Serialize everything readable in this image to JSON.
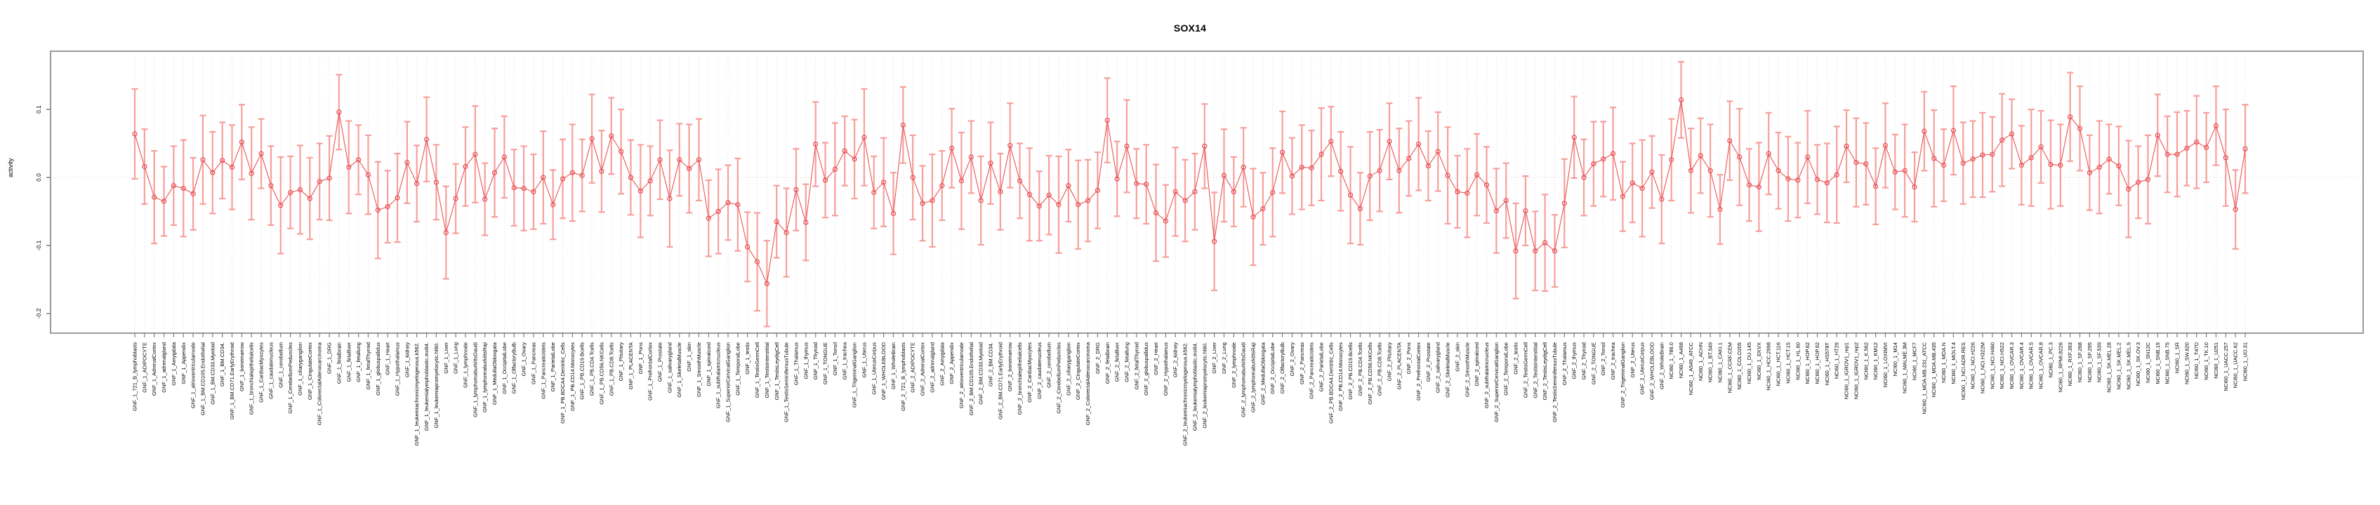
{
  "chart_data": {
    "type": "line",
    "subtype": "points-with-error-bars",
    "title": "SOX14",
    "xlabel": "",
    "ylabel": "activity",
    "ylim": [
      -0.23,
      0.185
    ],
    "yticks": [
      {
        "label": "0.1",
        "value": 0.1
      },
      {
        "label": "0.0",
        "value": 0.0
      },
      {
        "label": "-0.1",
        "value": -0.1
      },
      {
        "label": "-0.2",
        "value": -0.2
      }
    ],
    "grid": "dotted vertical gridline at every category; dotted horizontal line at 0",
    "legend_position": "none",
    "colors": {
      "error_bar": "#f79f9b",
      "marker": "#e8555a",
      "line": "#e8555a",
      "gridline": "#dcdcdc",
      "zero_line": "#c9c9c9",
      "box": "#9b9b9b",
      "tick": "#7f7f7f",
      "text": "#000000"
    },
    "categories": [
      "GNF_1_721_B_lymphoblasts",
      "GNF_1_ADIPOCYTE",
      "GNF_1_AdrenalCortex",
      "GNF_1_adrenalgland",
      "GNF_1_Amygdala",
      "GNF_1_Appendix",
      "GNF_1_atrioventricularnode",
      "GNF_1_BM.CD105.Endothelial",
      "GNF_1_BM.CD33.Myeloid",
      "GNF_1_BM.CD34.",
      "GNF_1_BM.CD71.EarlyErythroid",
      "GNF_1_bonemarrow",
      "GNF_1_bronchialepithelialcells",
      "GNF_1_CardiacMyocytes",
      "GNF_1_caudatenucleus",
      "GNF_1_cerebellum",
      "GNF_1_CerebellumPeduncles",
      "GNF_1_ciliaryganglion",
      "GNF_1_CingulateCortex",
      "GNF_1_ColorectalAdenocarcinoma",
      "GNF_1_DRG",
      "GNF_1_fetalbrain",
      "GNF_1_fetalliver",
      "GNF_1_fetallung",
      "GNF_1_fetalThyroid",
      "GNF_1_globuspallidus",
      "GNF_1_Heart",
      "GNF_1_Hypothalamus",
      "GNF_1_kidney",
      "GNF_1_leukemiachronicmyelogenous.k562.",
      "GNF_1_leukemialymphoblastic.molt4.",
      "GNF_1_leukemiapromyelocytic.hl60.",
      "GNF_1_Liver",
      "GNF_1_Lung",
      "GNF_1_lymphnode",
      "GNF_1_lymphomaburkittsDaudi",
      "GNF_1_lymphomaburkittsRaji",
      "GNF_1_MedullaOblongata",
      "GNF_1_OccipitalLobe",
      "GNF_1_OlfactoryBulb",
      "GNF_1_Ovary",
      "GNF_1_Pancreas",
      "GNF_1_Pancreaticislets",
      "GNF_1_ParietalLobe",
      "GNF_1_PB.BDCA4.Dentritic_Cells",
      "GNF_1_PB.CD14.Monocytes",
      "GNF_1_PB.CD19.Bcells",
      "GNF_1_PB.CD4.Tcells",
      "GNF_1_PB.CD56.NKCells",
      "GNF_1_PB.CD8.Tcells",
      "GNF_1_Pituitary",
      "GNF_1_PLACENTA",
      "GNF_1_Pons",
      "GNF_1_PrefrontalCortex",
      "GNF_1_Prostate",
      "GNF_1_salivarygland",
      "GNF_1_SkeletalMuscle",
      "GNF_1_skin",
      "GNF_1_SmoothMuscle",
      "GNF_1_spinalcord",
      "GNF_1_subthalamicnucleus",
      "GNF_1_SuperiorCervicalGanglion",
      "GNF_1_TemporalLobe",
      "GNF_1_testis",
      "GNF_1_TestisGermCell",
      "GNF_1_TestisInterstitial",
      "GNF_1_TestisLeydigCell",
      "GNF_1_TestisSeminiferousTubule",
      "GNF_1_Thalamus",
      "GNF_1_thymus",
      "GNF_1_Thyroid",
      "GNF_1_TONGUE",
      "GNF_1_Tonsil",
      "GNF_1_trachea",
      "GNF_1_TrigeminalGanglion",
      "GNF_1_Uterus",
      "GNF_1_UterusCorpus",
      "GNF_1_WHOLEBLOOD",
      "GNF_1_WholeBrain",
      "GNF_2_721_B_lymphoblasts",
      "GNF_2_ADIPOCYTE",
      "GNF_2_AdrenalCortex",
      "GNF_2_adrenalgland",
      "GNF_2_Amygdala",
      "GNF_2_Appendix",
      "GNF_2_atrioventricularnode",
      "GNF_2_BM.CD105.Endothelial",
      "GNF_2_BM.CD33.Myeloid",
      "GNF_2_BM.CD34.",
      "GNF_2_BM.CD71.EarlyErythroid",
      "GNF_2_bonemarrow",
      "GNF_2_bronchialepithelialcells",
      "GNF_2_CardiacMyocytes",
      "GNF_2_caudatenucleus",
      "GNF_2_cerebellum",
      "GNF_2_CerebellumPeduncles",
      "GNF_2_ciliaryganglion",
      "GNF_2_CingulateCortex",
      "GNF_2_ColorectalAdenocarcinoma",
      "GNF_2_DRG",
      "GNF_2_fetalbrain",
      "GNF_2_fetalliver",
      "GNF_2_fetallung",
      "GNF_2_fetalThyroid",
      "GNF_2_globuspallidus",
      "GNF_2_Heart",
      "GNF_2_Hypothalamus",
      "GNF_2_kidney",
      "GNF_2_leukemiachronicmyelogenous.k562.",
      "GNF_2_leukemialymphoblastic.molt4.",
      "GNF_2_leukemiapromyelocytic.hl60.",
      "GNF_2_Liver",
      "GNF_2_Lung",
      "GNF_2_lymphnode",
      "GNF_2_lymphomaburkittsDaudi",
      "GNF_2_lymphomaburkittsRaji",
      "GNF_2_MedullaOblongata",
      "GNF_2_OccipitalLobe",
      "GNF_2_OlfactoryBulb",
      "GNF_2_Ovary",
      "GNF_2_Pancreas",
      "GNF_2_Pancreaticislets",
      "GNF_2_ParietalLobe",
      "GNF_2_PB.BDCA4.Dentritic_Cells",
      "GNF_2_PB.CD14.Monocytes",
      "GNF_2_PB.CD19.Bcells",
      "GNF_2_PB.CD4.Tcells",
      "GNF_2_PB.CD56.NKCells",
      "GNF_2_PB.CD8.Tcells",
      "GNF_2_Pituitary",
      "GNF_2_PLACENTA",
      "GNF_2_Pons",
      "GNF_2_PrefrontalCortex",
      "GNF_2_Prostate",
      "GNF_2_salivarygland",
      "GNF_2_SkeletalMuscle",
      "GNF_2_skin",
      "GNF_2_SmoothMuscle",
      "GNF_2_spinalcord",
      "GNF_2_subthalamicnucleus",
      "GNF_2_SuperiorCervicalGanglion",
      "GNF_2_TemporalLobe",
      "GNF_2_testis",
      "GNF_2_TestisGermCell",
      "GNF_2_TestisInterstitial",
      "GNF_2_TestisLeydigCell",
      "GNF_2_TestisSeminiferousTubule",
      "GNF_2_Thalamus",
      "GNF_2_thymus",
      "GNF_2_Thyroid",
      "GNF_2_TONGUE",
      "GNF_2_Tonsil",
      "GNF_2_trachea",
      "GNF_2_TrigeminalGanglion",
      "GNF_2_Uterus",
      "GNF_2_UterusCorpus",
      "GNF_2_WHOLEBLOOD",
      "GNF_2_WholeBrain",
      "NCI60_1_786.0",
      "NCI60_1_A498",
      "NCI60_1_A549_ATCC",
      "NCI60_1_ACHN",
      "NCI60_1_BT.549",
      "NCI60_1_CAKI.1",
      "NCI60_1_CCRF.CEM",
      "NCI60_1_COLO205",
      "NCI60_1_DU.145",
      "NCI60_1_EKVX",
      "NCI60_1_HCC.2998",
      "NCI60_1_HCT.116",
      "NCI60_1_HCT.15",
      "NCI60_1_HL.60",
      "NCI60_1_HOP.62",
      "NCI60_1_HOP.92",
      "NCI60_1_HS578T",
      "NCI60_1_HT29",
      "NCI60_1_IGROV1_rep1",
      "NCI60_1_IGROV1_rep2",
      "NCI60_1_K.562",
      "NCI60_1_KM12",
      "NCI60_1_LOXIMVI",
      "NCI60_1_M14",
      "NCI60_1_MALME.3M",
      "NCI60_1_MCF7",
      "NCI60_1_MDA.MB.231_ATCC",
      "NCI60_1_MDA.MB.435",
      "NCI60_1_MDA.N",
      "NCI60_1_MOLT.4",
      "NCI60_1_NCI.ADR.RES",
      "NCI60_1_NCI.H226",
      "NCI60_1_NCI.H322M",
      "NCI60_1_NCI.H460",
      "NCI60_1_NCI.H522",
      "NCI60_1_OVCAR.3",
      "NCI60_1_OVCAR.4",
      "NCI60_1_OVCAR.5",
      "NCI60_1_OVCAR.8",
      "NCI60_1_PC.3",
      "NCI60_1_RPMI.8226",
      "NCI60_1_RXF.393",
      "NCI60_1_SF.268",
      "NCI60_1_SF.295",
      "NCI60_1_SF.539",
      "NCI60_1_SK.MEL.28",
      "NCI60_1_SK.MEL.2",
      "NCI60_1_SK.MEL.5",
      "NCI60_1_SK.OV.3",
      "NCI60_1_SN12C",
      "NCI60_1_SNB.19",
      "NCI60_1_SNB.75",
      "NCI60_1_SR",
      "NCI60_1_SW.620",
      "NCI60_1_T47D",
      "NCI60_1_TK.10",
      "NCI60_1_U251",
      "NCI60_1_UACC.257",
      "NCI60_1_UACC.62",
      "NCI60_1_UO.31"
    ],
    "values": [
      0.064,
      0.016,
      -0.029,
      -0.035,
      -0.012,
      -0.016,
      -0.024,
      0.026,
      0.007,
      0.025,
      0.015,
      0.052,
      0.006,
      0.035,
      -0.012,
      -0.041,
      -0.022,
      -0.018,
      -0.031,
      -0.006,
      -0.001,
      0.096,
      0.015,
      0.026,
      0.004,
      -0.048,
      -0.043,
      -0.03,
      0.022,
      -0.009,
      0.056,
      -0.007,
      -0.081,
      -0.031,
      0.016,
      0.034,
      -0.032,
      0.007,
      0.03,
      -0.015,
      -0.016,
      -0.021,
      0.0,
      -0.04,
      -0.002,
      0.007,
      0.003,
      0.057,
      0.009,
      0.061,
      0.038,
      0.0,
      -0.02,
      -0.005,
      0.026,
      -0.031,
      0.026,
      0.013,
      0.026,
      -0.06,
      -0.05,
      -0.037,
      -0.04,
      -0.102,
      -0.124,
      -0.156,
      -0.065,
      -0.081,
      -0.018,
      -0.066,
      0.049,
      -0.004,
      0.012,
      0.039,
      0.027,
      0.059,
      -0.022,
      -0.007,
      -0.053,
      0.077,
      0.0,
      -0.038,
      -0.034,
      -0.012,
      0.043,
      -0.005,
      0.03,
      -0.034,
      0.021,
      -0.021,
      0.047,
      -0.005,
      -0.025,
      -0.042,
      -0.026,
      -0.04,
      -0.012,
      -0.04,
      -0.034,
      -0.019,
      0.084,
      -0.002,
      0.046,
      -0.009,
      -0.01,
      -0.052,
      -0.064,
      -0.021,
      -0.034,
      -0.021,
      0.046,
      -0.094,
      0.003,
      -0.021,
      0.015,
      -0.058,
      -0.046,
      -0.022,
      0.037,
      0.002,
      0.015,
      0.014,
      0.034,
      0.053,
      0.009,
      -0.026,
      -0.046,
      0.002,
      0.01,
      0.053,
      0.01,
      0.028,
      0.049,
      0.017,
      0.038,
      0.003,
      -0.021,
      -0.023,
      0.004,
      -0.011,
      -0.049,
      -0.034,
      -0.108,
      -0.049,
      -0.108,
      -0.096,
      -0.108,
      -0.038,
      0.059,
      0.0,
      0.02,
      0.027,
      0.035,
      -0.028,
      -0.008,
      -0.016,
      0.008,
      -0.032,
      0.026,
      0.114,
      0.01,
      0.032,
      0.01,
      -0.047,
      0.054,
      0.03,
      -0.011,
      -0.014,
      0.035,
      0.01,
      -0.002,
      -0.004,
      0.03,
      -0.003,
      -0.008,
      0.004,
      0.046,
      0.022,
      0.02,
      -0.013,
      0.047,
      0.008,
      0.01,
      -0.014,
      0.068,
      0.028,
      0.018,
      0.069,
      0.021,
      0.027,
      0.033,
      0.034,
      0.055,
      0.064,
      0.018,
      0.029,
      0.045,
      0.019,
      0.018,
      0.089,
      0.072,
      0.007,
      0.015,
      0.027,
      0.017,
      -0.017,
      -0.007,
      -0.003,
      0.062,
      0.034,
      0.034,
      0.043,
      0.052,
      0.044,
      0.076,
      0.029,
      -0.047,
      0.042
    ],
    "errors": [
      0.066,
      0.055,
      0.068,
      0.051,
      0.058,
      0.071,
      0.053,
      0.065,
      0.06,
      0.056,
      0.062,
      0.055,
      0.068,
      0.051,
      0.058,
      0.071,
      0.053,
      0.065,
      0.06,
      0.056,
      0.062,
      0.055,
      0.068,
      0.051,
      0.058,
      0.071,
      0.053,
      0.065,
      0.06,
      0.056,
      0.062,
      0.055,
      0.068,
      0.051,
      0.058,
      0.071,
      0.053,
      0.065,
      0.06,
      0.056,
      0.062,
      0.055,
      0.068,
      0.051,
      0.058,
      0.071,
      0.053,
      0.065,
      0.06,
      0.056,
      0.062,
      0.055,
      0.068,
      0.051,
      0.058,
      0.071,
      0.053,
      0.065,
      0.06,
      0.056,
      0.062,
      0.055,
      0.068,
      0.051,
      0.072,
      0.063,
      0.053,
      0.065,
      0.06,
      0.056,
      0.062,
      0.055,
      0.068,
      0.051,
      0.058,
      0.071,
      0.053,
      0.065,
      0.06,
      0.056,
      0.062,
      0.055,
      0.068,
      0.051,
      0.058,
      0.071,
      0.053,
      0.065,
      0.06,
      0.056,
      0.062,
      0.055,
      0.068,
      0.051,
      0.058,
      0.071,
      0.053,
      0.065,
      0.06,
      0.056,
      0.062,
      0.055,
      0.068,
      0.051,
      0.058,
      0.071,
      0.053,
      0.065,
      0.06,
      0.056,
      0.062,
      0.072,
      0.068,
      0.051,
      0.058,
      0.071,
      0.053,
      0.065,
      0.06,
      0.056,
      0.062,
      0.055,
      0.068,
      0.051,
      0.058,
      0.071,
      0.053,
      0.065,
      0.06,
      0.056,
      0.062,
      0.055,
      0.068,
      0.051,
      0.058,
      0.071,
      0.053,
      0.065,
      0.06,
      0.056,
      0.062,
      0.055,
      0.07,
      0.051,
      0.058,
      0.071,
      0.053,
      0.065,
      0.06,
      0.056,
      0.062,
      0.055,
      0.068,
      0.051,
      0.058,
      0.071,
      0.053,
      0.065,
      0.06,
      0.056,
      0.062,
      0.055,
      0.068,
      0.051,
      0.058,
      0.071,
      0.053,
      0.065,
      0.06,
      0.056,
      0.062,
      0.055,
      0.068,
      0.051,
      0.058,
      0.071,
      0.053,
      0.065,
      0.06,
      0.056,
      0.062,
      0.055,
      0.068,
      0.051,
      0.058,
      0.071,
      0.053,
      0.065,
      0.06,
      0.056,
      0.062,
      0.055,
      0.068,
      0.051,
      0.058,
      0.071,
      0.053,
      0.065,
      0.06,
      0.065,
      0.062,
      0.055,
      0.068,
      0.051,
      0.058,
      0.071,
      0.053,
      0.065,
      0.06,
      0.056,
      0.062,
      0.055,
      0.068,
      0.051,
      0.058,
      0.071,
      0.058,
      0.065
    ]
  }
}
